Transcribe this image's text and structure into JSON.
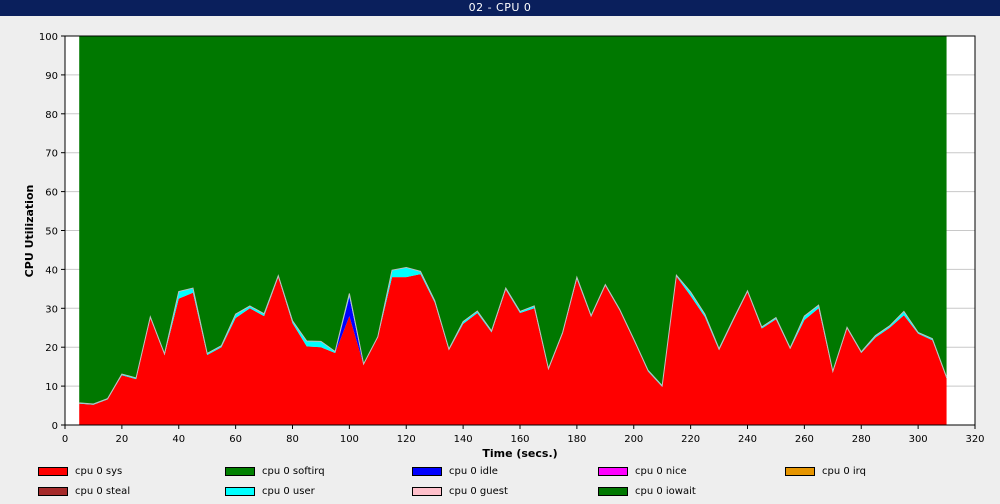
{
  "window": {
    "title": "02 - CPU 0"
  },
  "colors": {
    "background": "#eeeeee",
    "plot_background": "#ffffff",
    "gridline": "#c8c8c8",
    "outline": "#c0c0c0"
  },
  "chart_data": {
    "type": "area",
    "stacked": true,
    "title": "",
    "xlabel": "Time (secs.)",
    "ylabel": "CPU Utilization",
    "xlim": [
      0,
      320
    ],
    "ylim": [
      0,
      100
    ],
    "xticks": [
      0,
      20,
      40,
      60,
      80,
      100,
      120,
      140,
      160,
      180,
      200,
      220,
      240,
      260,
      280,
      300,
      320
    ],
    "yticks": [
      0,
      10,
      20,
      30,
      40,
      50,
      60,
      70,
      80,
      90,
      100
    ],
    "grid": true,
    "legend_position": "bottom",
    "x": [
      5,
      10,
      15,
      20,
      25,
      30,
      35,
      40,
      45,
      50,
      55,
      60,
      65,
      70,
      75,
      80,
      85,
      90,
      95,
      100,
      105,
      110,
      115,
      120,
      125,
      130,
      135,
      140,
      145,
      150,
      155,
      160,
      165,
      170,
      175,
      180,
      185,
      190,
      195,
      200,
      205,
      210,
      215,
      220,
      225,
      230,
      235,
      240,
      245,
      250,
      255,
      260,
      265,
      270,
      275,
      280,
      285,
      290,
      295,
      300,
      305,
      310
    ],
    "series": [
      {
        "name": "cpu 0 sys",
        "color": "#ff0000",
        "values": [
          5.5,
          5.2,
          6.6,
          12.8,
          11.8,
          27.5,
          18,
          32.5,
          34,
          18,
          20,
          27.5,
          30,
          28,
          38,
          26.2,
          20.2,
          20,
          18.5,
          28,
          15.5,
          22.5,
          38,
          38,
          38.8,
          31.5,
          19.2,
          26,
          28.8,
          23.8,
          34.8,
          28.8,
          30,
          14.2,
          23.5,
          37.5,
          27.8,
          35.8,
          29.5,
          21.8,
          13.8,
          9.8,
          38.2,
          33.2,
          27.8,
          19.2,
          26.8,
          34.2,
          24.8,
          27.2,
          19.5,
          27,
          30,
          13.5,
          24.8,
          18.5,
          22.5,
          25,
          28.2,
          23.5,
          21.8,
          12
        ]
      },
      {
        "name": "cpu 0 softirq",
        "color": "#008000",
        "values": [
          0,
          0,
          0,
          0,
          0,
          0,
          0,
          0,
          0,
          0,
          0,
          0,
          0,
          0,
          0,
          0,
          0,
          0,
          0,
          0,
          0,
          0,
          0,
          0,
          0,
          0,
          0,
          0,
          0,
          0,
          0,
          0,
          0,
          0,
          0,
          0,
          0,
          0,
          0,
          0,
          0,
          0,
          0,
          0,
          0,
          0,
          0,
          0,
          0,
          0,
          0,
          0,
          0,
          0,
          0,
          0,
          0,
          0,
          0,
          0,
          0,
          0
        ]
      },
      {
        "name": "cpu 0 idle",
        "color": "#0000ff",
        "values": [
          0,
          0,
          0,
          0,
          0,
          0,
          0,
          0,
          0,
          0,
          0,
          0,
          0,
          0,
          0,
          0,
          0,
          0,
          0,
          5,
          0,
          0,
          0,
          0,
          0,
          0,
          0,
          0,
          0,
          0,
          0,
          0,
          0,
          0,
          0,
          0,
          0,
          0,
          0,
          0,
          0,
          0,
          0,
          0,
          0,
          0,
          0,
          0,
          0,
          0,
          0,
          0,
          0,
          0,
          0,
          0,
          0,
          0,
          0,
          0,
          0,
          0
        ]
      },
      {
        "name": "cpu 0 nice",
        "color": "#ff00ff",
        "values": [
          0,
          0,
          0,
          0,
          0,
          0,
          0,
          0,
          0,
          0,
          0,
          0,
          0,
          0,
          0,
          0,
          0,
          0,
          0,
          0,
          0,
          0,
          0,
          0,
          0,
          0,
          0,
          0,
          0,
          0,
          0,
          0,
          0,
          0,
          0,
          0,
          0,
          0,
          0,
          0,
          0,
          0,
          0,
          0,
          0,
          0,
          0,
          0,
          0,
          0,
          0,
          0,
          0,
          0,
          0,
          0,
          0,
          0,
          0,
          0,
          0,
          0
        ]
      },
      {
        "name": "cpu 0 irq",
        "color": "#e69500",
        "values": [
          0,
          0,
          0,
          0,
          0,
          0,
          0,
          0,
          0,
          0,
          0,
          0,
          0,
          0,
          0,
          0,
          0,
          0,
          0,
          0,
          0,
          0,
          0,
          0,
          0,
          0,
          0,
          0,
          0,
          0,
          0,
          0,
          0,
          0,
          0,
          0,
          0,
          0,
          0,
          0,
          0,
          0,
          0,
          0,
          0,
          0,
          0,
          0,
          0,
          0,
          0,
          0,
          0,
          0,
          0,
          0,
          0,
          0,
          0,
          0,
          0,
          0
        ]
      },
      {
        "name": "cpu 0 steal",
        "color": "#a52a2a",
        "values": [
          0,
          0,
          0,
          0,
          0,
          0,
          0,
          0,
          0,
          0,
          0,
          0,
          0,
          0,
          0,
          0,
          0,
          0,
          0,
          0,
          0,
          0,
          0,
          0,
          0,
          0,
          0,
          0,
          0,
          0,
          0,
          0,
          0,
          0,
          0,
          0,
          0,
          0,
          0,
          0,
          0,
          0,
          0,
          0,
          0,
          0,
          0,
          0,
          0,
          0,
          0,
          0,
          0,
          0,
          0,
          0,
          0,
          0,
          0,
          0,
          0,
          0
        ]
      },
      {
        "name": "cpu 0 user",
        "color": "#00ffff",
        "values": [
          0.2,
          0.2,
          0.2,
          0.3,
          0.3,
          0.3,
          0.3,
          1.8,
          1.2,
          0.4,
          0.4,
          1,
          0.6,
          0.6,
          0.4,
          0.6,
          1.4,
          1.5,
          0.4,
          0.8,
          0.2,
          0.2,
          1.8,
          2.5,
          0.7,
          0.5,
          0.3,
          0.6,
          0.5,
          0.4,
          0.4,
          0.4,
          0.6,
          0.3,
          0.3,
          0.5,
          0.3,
          0.3,
          0.3,
          0.3,
          0.3,
          0.3,
          0.3,
          1,
          0.7,
          0.4,
          0.4,
          0.3,
          0.4,
          0.4,
          0.3,
          1,
          0.8,
          0.3,
          0.3,
          0.3,
          0.5,
          0.5,
          1,
          0.3,
          0.4,
          0.3
        ]
      },
      {
        "name": "cpu 0 guest",
        "color": "#ffc0cb",
        "values": [
          0,
          0,
          0,
          0,
          0,
          0,
          0,
          0,
          0,
          0,
          0,
          0,
          0,
          0,
          0,
          0,
          0,
          0,
          0,
          0,
          0,
          0,
          0,
          0,
          0,
          0,
          0,
          0,
          0,
          0,
          0,
          0,
          0,
          0,
          0,
          0,
          0,
          0,
          0,
          0,
          0,
          0,
          0,
          0,
          0,
          0,
          0,
          0,
          0,
          0,
          0,
          0,
          0,
          0,
          0,
          0,
          0,
          0,
          0,
          0,
          0,
          0
        ]
      },
      {
        "name": "cpu 0 iowait",
        "color": "#007800",
        "fill_to_top": true,
        "values": [
          94.3,
          94.6,
          93.2,
          86.9,
          87.9,
          72.2,
          81.7,
          65.7,
          64.8,
          81.6,
          79.6,
          71.5,
          69.4,
          71.4,
          61.6,
          73.2,
          78.4,
          78.5,
          81.1,
          66.2,
          84.3,
          77.3,
          60.2,
          59.5,
          60.5,
          68,
          80.5,
          73.4,
          70.7,
          75.8,
          64.8,
          70.8,
          69.4,
          85.5,
          76.2,
          62,
          71.9,
          63.9,
          70.2,
          77.9,
          85.9,
          89.9,
          61.5,
          65.8,
          71.5,
          80.4,
          72.8,
          65.5,
          74.8,
          72.4,
          80.2,
          72,
          69.2,
          86.2,
          74.9,
          81.2,
          77,
          74.5,
          70.8,
          76.2,
          77.8,
          87.7
        ]
      }
    ]
  }
}
